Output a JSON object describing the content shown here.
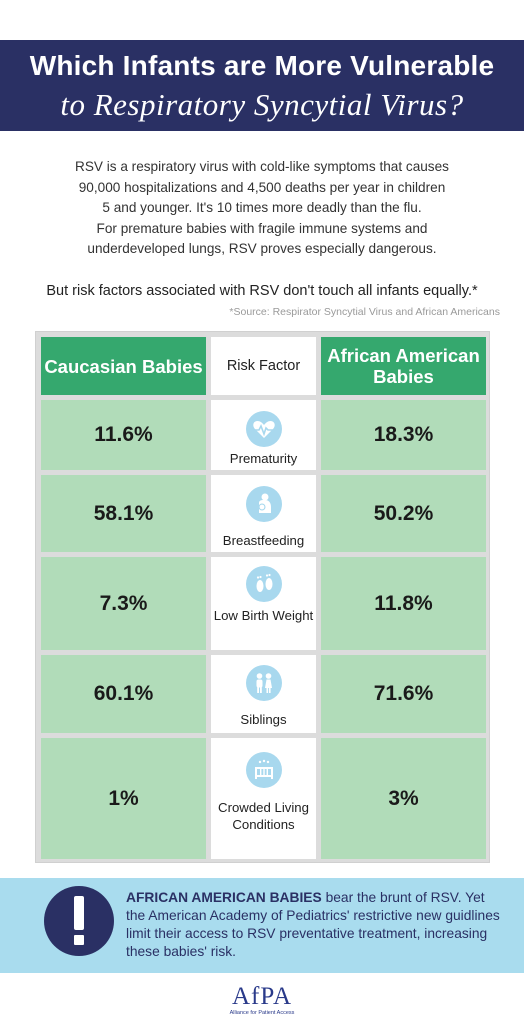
{
  "header": {
    "title_line1": "Which Infants are More Vulnerable",
    "title_line2": "to Respiratory Syncytial Virus?"
  },
  "intro": {
    "lines": [
      "RSV is a respiratory virus with cold-like symptoms that causes",
      "90,000 hospitalizations and 4,500 deaths per year in children",
      "5 and younger. It's 10 times more deadly than the flu.",
      "For premature babies with fragile immune systems and",
      "underdeveloped lungs, RSV proves especially dangerous."
    ]
  },
  "risk_line": "But risk factors associated with RSV don't touch all infants equally.*",
  "source": "*Source: Respirator Syncytial Virus and African Americans",
  "table": {
    "headers": {
      "left": "Caucasian Babies",
      "middle": "Risk Factor",
      "right": "African American Babies"
    },
    "rows": [
      {
        "factor": "Prematurity",
        "icon": "heart-pulse-icon",
        "caucasian": "11.6%",
        "african_american": "18.3%"
      },
      {
        "factor": "Breastfeeding",
        "icon": "mother-baby-icon",
        "caucasian": "58.1%",
        "african_american": "50.2%"
      },
      {
        "factor": "Low Birth Weight",
        "icon": "footprints-icon",
        "caucasian": "7.3%",
        "african_american": "11.8%"
      },
      {
        "factor": "Siblings",
        "icon": "siblings-icon",
        "caucasian": "60.1%",
        "african_american": "71.6%"
      },
      {
        "factor": "Crowded Living Conditions",
        "icon": "crib-icon",
        "caucasian": "1%",
        "african_american": "3%"
      }
    ]
  },
  "banner": {
    "highlight": "AFRICAN AMERICAN BABIES",
    "text": "bear the brunt of RSV. Yet the American Academy of Pediatrics' restrictive new guidlines limit their access to RSV preventative treatment, increasing these babies' risk.",
    "icon": "exclamation-icon"
  },
  "logo": {
    "mark": "AfPA",
    "subtitle": "Alliance for Patient Access"
  },
  "colors": {
    "navy": "#2a3064",
    "green_header": "#35a86e",
    "green_cell": "#b1dcb9",
    "light_blue": "#a9dcee",
    "icon_blue": "#a8d8ee"
  }
}
